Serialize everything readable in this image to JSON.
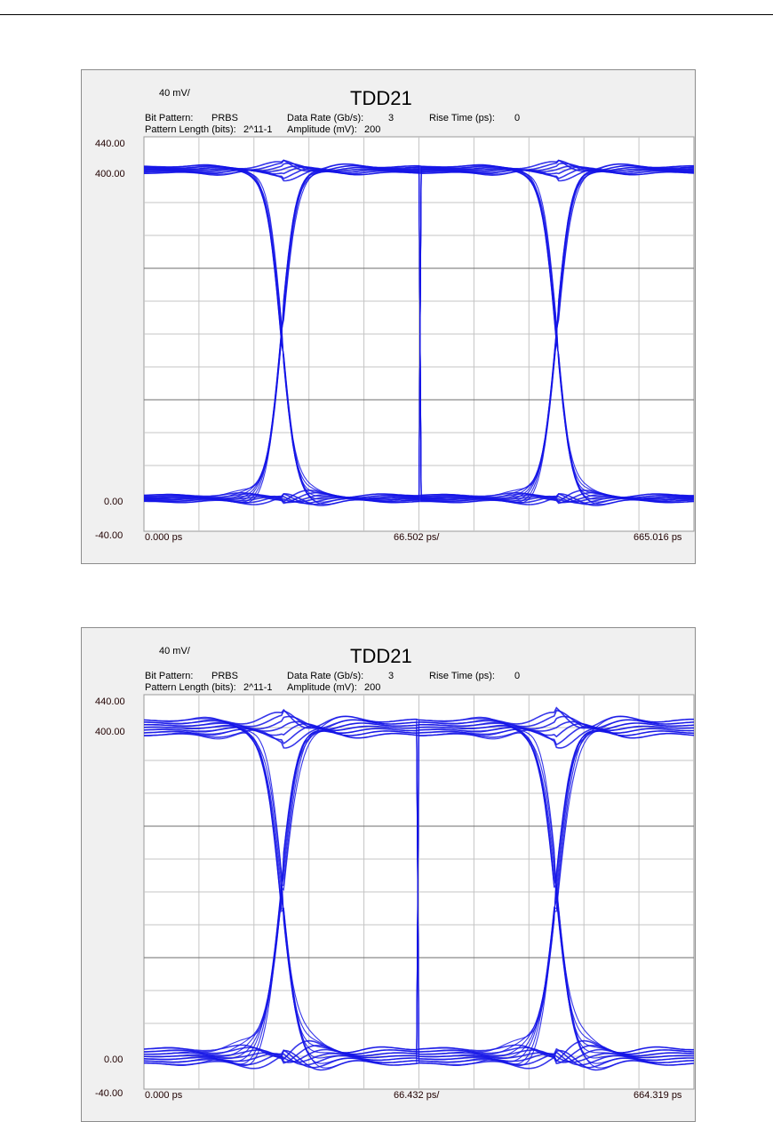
{
  "chart_data": [
    {
      "type": "line",
      "title": "TDD21",
      "scale_label": "40 mV/",
      "info": {
        "bit_pattern_label": "Bit Pattern:",
        "bit_pattern": "PRBS",
        "pattern_length_label": "Pattern Length (bits):",
        "pattern_length": "2^11-1",
        "data_rate_label": "Data Rate (Gb/s):",
        "data_rate": "3",
        "amplitude_label": "Amplitude (mV):",
        "amplitude": "200",
        "rise_time_label": "Rise Time (ps):",
        "rise_time": "0"
      },
      "y_ticks": [
        "440.00",
        "400.00",
        "0.00",
        "-40.00"
      ],
      "ylim": [
        -40,
        440
      ],
      "x_start_label": "0.000 ps",
      "x_div_label": "66.502 ps/",
      "x_end_label": "665.016 ps",
      "xlim": [
        0,
        665.016
      ],
      "grid": true,
      "signal": {
        "high": 400,
        "low": 0,
        "crossing_times": [
          166.3,
          498.8
        ],
        "transition_time": 80,
        "trace_spread": 4,
        "ringing": 6
      }
    },
    {
      "type": "line",
      "title": "TDD21",
      "scale_label": "40 mV/",
      "info": {
        "bit_pattern_label": "Bit Pattern:",
        "bit_pattern": "PRBS",
        "pattern_length_label": "Pattern Length (bits):",
        "pattern_length": "2^11-1",
        "data_rate_label": "Data Rate (Gb/s):",
        "data_rate": "3",
        "amplitude_label": "Amplitude (mV):",
        "amplitude": "200",
        "rise_time_label": "Rise Time (ps):",
        "rise_time": "0"
      },
      "y_ticks": [
        "440.00",
        "400.00",
        "0.00",
        "-40.00"
      ],
      "ylim": [
        -40,
        440
      ],
      "x_start_label": "0.000 ps",
      "x_div_label": "66.432 ps/",
      "x_end_label": "664.319 ps",
      "xlim": [
        0,
        664.319
      ],
      "grid": true,
      "signal": {
        "high": 400,
        "low": 0,
        "crossing_times": [
          166.1,
          498.2
        ],
        "transition_time": 90,
        "trace_spread": 9,
        "ringing": 10
      }
    }
  ]
}
